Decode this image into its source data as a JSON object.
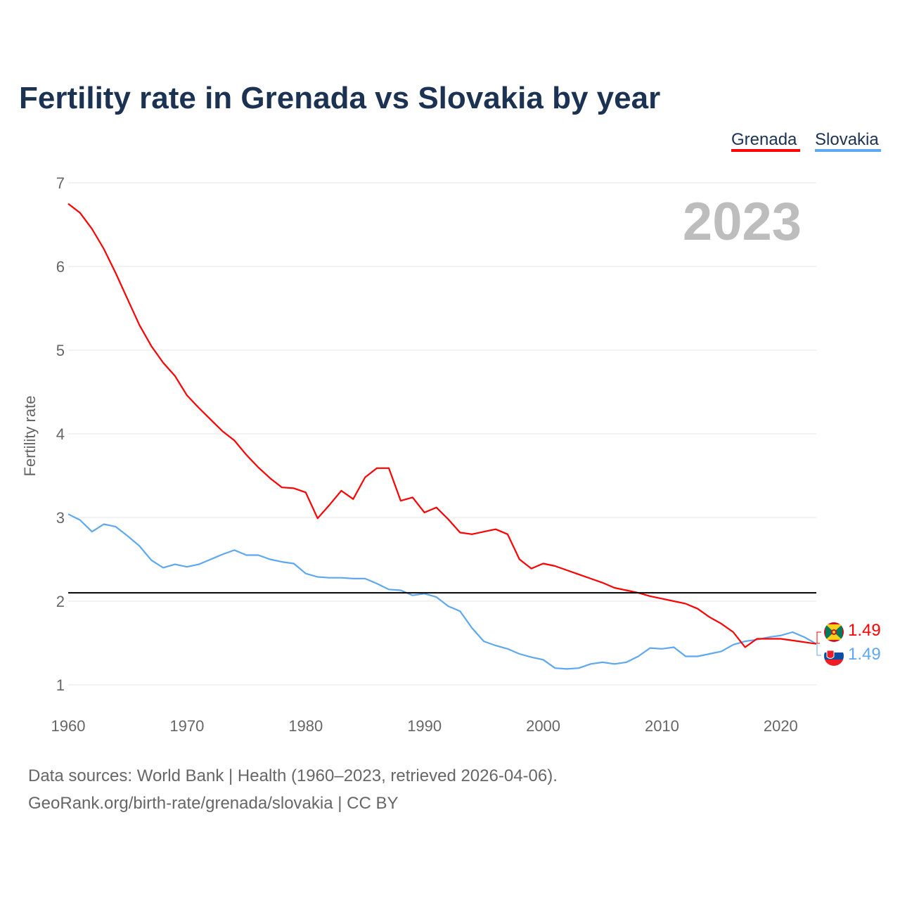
{
  "chart_data": {
    "type": "line",
    "title": "Fertility rate in Grenada vs Slovakia by year",
    "xlabel": "",
    "ylabel": "Fertility rate",
    "xlim": [
      1960,
      2023
    ],
    "ylim": [
      1,
      7
    ],
    "x_ticks": [
      "1960",
      "1970",
      "1980",
      "1990",
      "2000",
      "2010",
      "2020"
    ],
    "y_ticks": [
      "1",
      "2",
      "3",
      "4",
      "5",
      "6",
      "7"
    ],
    "grid": true,
    "legend_position": "top-right",
    "year_watermark": "2023",
    "reference_line": 2.1,
    "x": [
      1960,
      1961,
      1962,
      1963,
      1964,
      1965,
      1966,
      1967,
      1968,
      1969,
      1970,
      1971,
      1972,
      1973,
      1974,
      1975,
      1976,
      1977,
      1978,
      1979,
      1980,
      1981,
      1982,
      1983,
      1984,
      1985,
      1986,
      1987,
      1988,
      1989,
      1990,
      1991,
      1992,
      1993,
      1994,
      1995,
      1996,
      1997,
      1998,
      1999,
      2000,
      2001,
      2002,
      2003,
      2004,
      2005,
      2006,
      2007,
      2008,
      2009,
      2010,
      2011,
      2012,
      2013,
      2014,
      2015,
      2016,
      2017,
      2018,
      2019,
      2020,
      2021,
      2022,
      2023
    ],
    "series": [
      {
        "name": "Grenada",
        "color": "#ff0000",
        "end_label": "1.49",
        "values": [
          6.75,
          6.64,
          6.45,
          6.21,
          5.92,
          5.61,
          5.3,
          5.05,
          4.85,
          4.69,
          4.46,
          4.31,
          4.17,
          4.03,
          3.92,
          3.75,
          3.6,
          3.47,
          3.36,
          3.35,
          3.3,
          2.99,
          3.15,
          3.32,
          3.22,
          3.48,
          3.59,
          3.59,
          3.2,
          3.24,
          3.06,
          3.12,
          2.98,
          2.82,
          2.8,
          2.83,
          2.86,
          2.8,
          2.5,
          2.39,
          2.45,
          2.42,
          2.37,
          2.32,
          2.27,
          2.22,
          2.16,
          2.13,
          2.1,
          2.06,
          2.03,
          2.0,
          1.97,
          1.91,
          1.81,
          1.73,
          1.63,
          1.45,
          1.55,
          1.55,
          1.55,
          1.53,
          1.51,
          1.49
        ]
      },
      {
        "name": "Slovakia",
        "color": "#5ea8ef",
        "end_label": "1.49",
        "values": [
          3.04,
          2.97,
          2.83,
          2.92,
          2.89,
          2.78,
          2.66,
          2.49,
          2.4,
          2.44,
          2.41,
          2.44,
          2.5,
          2.56,
          2.61,
          2.55,
          2.55,
          2.5,
          2.47,
          2.45,
          2.33,
          2.29,
          2.28,
          2.28,
          2.27,
          2.27,
          2.21,
          2.14,
          2.13,
          2.07,
          2.09,
          2.05,
          1.94,
          1.88,
          1.68,
          1.52,
          1.47,
          1.43,
          1.37,
          1.33,
          1.3,
          1.2,
          1.19,
          1.2,
          1.25,
          1.27,
          1.25,
          1.27,
          1.34,
          1.44,
          1.43,
          1.45,
          1.34,
          1.34,
          1.37,
          1.4,
          1.48,
          1.52,
          1.54,
          1.57,
          1.59,
          1.63,
          1.57,
          1.49
        ]
      }
    ]
  },
  "footer": {
    "line1": "Data sources: World Bank | Health (1960–2023, retrieved 2026-04-06).",
    "line2": "GeoRank.org/birth-rate/grenada/slovakia | CC BY"
  }
}
